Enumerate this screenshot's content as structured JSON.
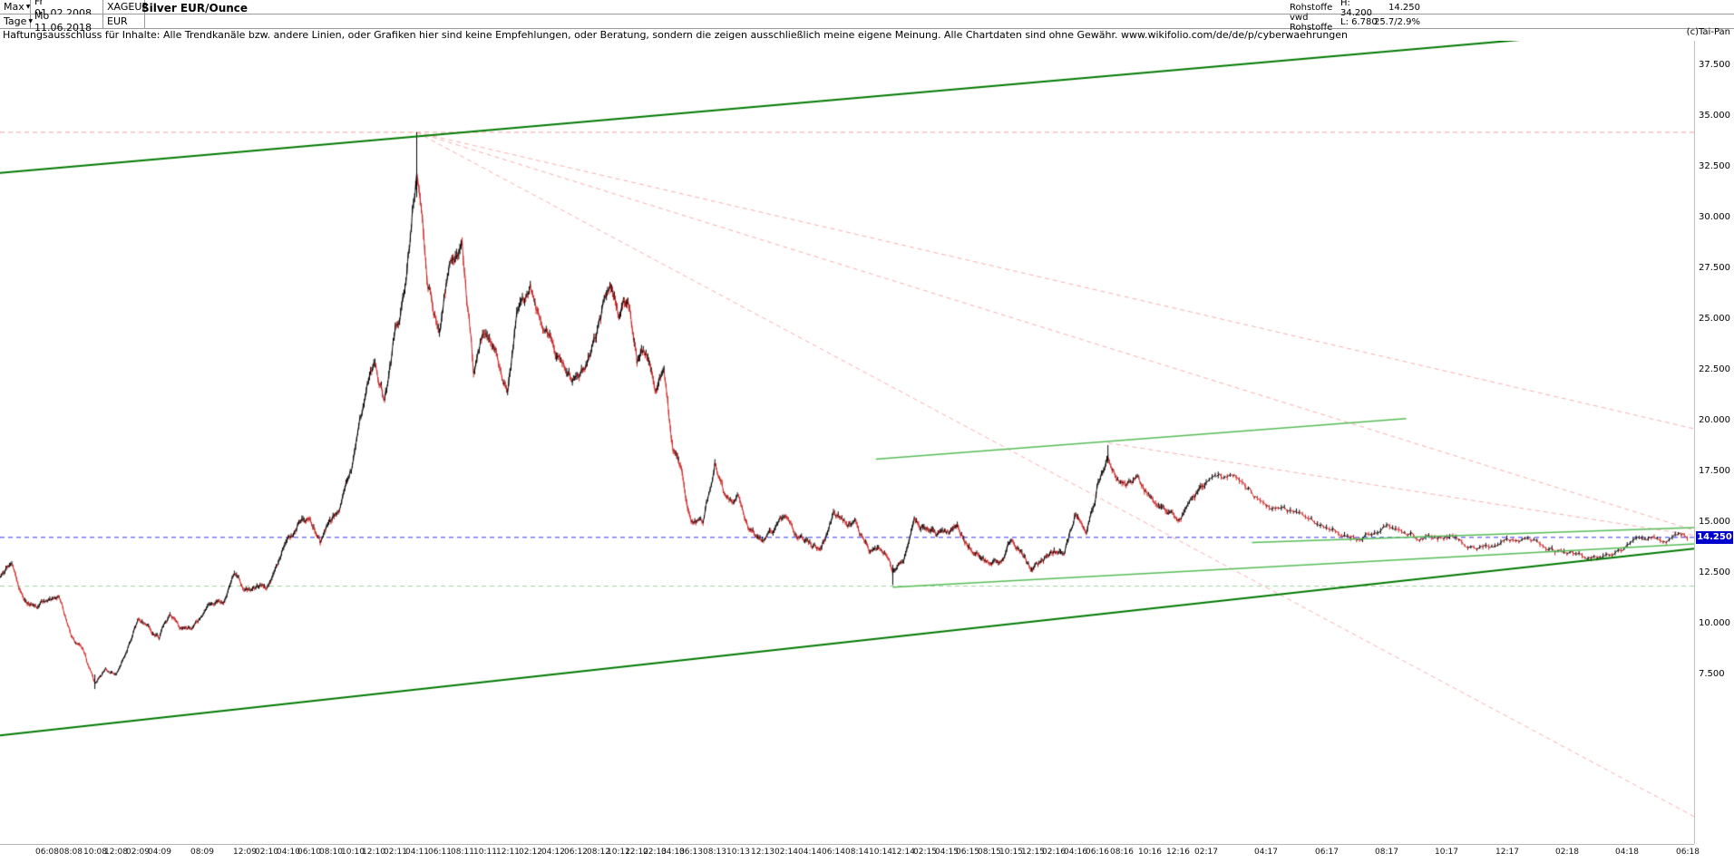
{
  "header": {
    "period": "Max",
    "interval": "Tage",
    "start_date": "Fr 01.02.2008",
    "end_date": "Mo 11.06.2018",
    "symbol": "XAGEUR",
    "currency": "EUR",
    "title": "Silver EUR/Ounce",
    "category": "Rohstoffe",
    "provider": "vwd Rohstoffe",
    "high_label": "H: 34.200",
    "low_label": "L: 6.780",
    "last_value": "14.250",
    "change_stats": "25.7/2.9%",
    "copyright": "(c)Tai-Pan"
  },
  "disclaimer": "Haftungsausschluss für Inhalte: Alle Trendkanäle bzw. andere Linien, oder Grafiken hier sind keine Empfehlungen, oder Beratung, sondern die zeigen ausschließlich meine eigene Meinung. Alle Chartdaten sind ohne Gewähr. www.wikifolio.com/de/de/p/cyberwaehrungen",
  "price_axis": {
    "labels": [
      "37.500",
      "35.000",
      "32.500",
      "30.000",
      "27.500",
      "25.000",
      "22.500",
      "20.000",
      "17.500",
      "15.000",
      "12.500",
      "10.000",
      "7.500"
    ],
    "current_marker": "14.250"
  },
  "date_axis": {
    "labels": [
      "06:08",
      "08:08",
      "10:08",
      "12:08",
      "02:09",
      "04:09",
      "08:09",
      "12:09",
      "02:10",
      "04:10",
      "06:10",
      "08:10",
      "10:10",
      "12:10",
      "02:11",
      "04:11",
      "06:11",
      "08:11",
      "10:11",
      "12:11",
      "02:12",
      "04:12",
      "06:12",
      "08:12",
      "10:12",
      "12:12",
      "02:13",
      "04:13",
      "06:13",
      "08:13",
      "10:13",
      "12:13",
      "02:14",
      "04:14",
      "06:14",
      "08:14",
      "10:14",
      "12:14",
      "02:15",
      "04:15",
      "06:15",
      "08:15",
      "10:15",
      "12:15",
      "02:16",
      "04:16",
      "06:16",
      "08:16",
      "10:16",
      "12:16",
      "02:17",
      "04:17",
      "06:17",
      "08:17",
      "10:17",
      "12:17",
      "02:18",
      "04:18",
      "06:18"
    ]
  },
  "chart_data": {
    "type": "line",
    "title": "Silver EUR/Ounce",
    "instrument": "XAGEUR",
    "x_start": "2008-02",
    "x_end": "2018-06",
    "x_step": "month",
    "grid": false,
    "legend": false,
    "extremes": {
      "high": {
        "date": "2011-04",
        "value": 34.2
      },
      "low": {
        "date": "2008-10",
        "value": 6.78
      }
    },
    "swing_points": [
      {
        "date": "2016-07",
        "value": 18.8
      },
      {
        "date": "2014-11",
        "value": 11.9
      }
    ],
    "last_price": 14.25,
    "series": [
      {
        "name": "XAGEUR close (EUR)",
        "values": [
          12.2,
          13.0,
          11.2,
          11.0,
          11.2,
          11.4,
          9.3,
          8.8,
          7.0,
          7.8,
          7.4,
          8.6,
          10.3,
          9.8,
          9.3,
          10.4,
          9.9,
          9.8,
          10.3,
          11.0,
          11.1,
          12.3,
          11.7,
          11.9,
          11.9,
          12.9,
          13.9,
          15.0,
          15.4,
          13.9,
          15.1,
          16.2,
          17.6,
          20.8,
          22.9,
          20.7,
          24.3,
          26.6,
          32.5,
          26.6,
          24.2,
          27.9,
          28.8,
          22.5,
          24.3,
          23.6,
          21.5,
          25.6,
          26.3,
          24.3,
          23.6,
          22.4,
          21.9,
          22.8,
          24.9,
          26.9,
          24.9,
          25.8,
          22.9,
          23.4,
          21.8,
          22.4,
          18.6,
          17.3,
          15.0,
          15.1,
          17.8,
          16.1,
          16.2,
          14.7,
          14.1,
          14.6,
          15.5,
          14.4,
          13.9,
          13.8,
          15.4,
          15.2,
          14.8,
          13.5,
          13.8,
          12.5,
          13.1,
          15.2,
          14.7,
          14.5,
          14.5,
          14.8,
          14.0,
          13.4,
          13.1,
          13.0,
          14.1,
          13.3,
          12.7,
          13.1,
          13.7,
          13.6,
          15.4,
          14.4,
          16.7,
          18.3,
          16.9,
          17.1,
          16.2,
          15.6,
          15.2,
          15.9,
          17.1,
          17.0,
          15.9,
          15.5,
          14.6,
          14.3,
          14.9,
          14.1,
          14.4,
          13.8,
          14.1,
          14.0,
          13.4,
          13.3,
          13.7,
          14.2,
          14.25
        ]
      }
    ],
    "reference_lines": [
      {
        "name": "all-time-high-line",
        "price": 34.2,
        "color": "#f0a0a0",
        "style": "dashed"
      },
      {
        "name": "support-low-line",
        "price": 11.85,
        "color": "#9cd69c",
        "style": "dashed"
      },
      {
        "name": "current-price-line",
        "price": 14.25,
        "color": "#3333ee",
        "style": "dashed"
      }
    ],
    "trend_lines": [
      {
        "name": "channel-top",
        "x1": 0.0,
        "price1": 32.2,
        "x2": 1.0,
        "price2": 39.5,
        "color": "#007a00",
        "width": 2,
        "style": "solid"
      },
      {
        "name": "channel-bottom",
        "x1": 0.0,
        "price1": 4.5,
        "x2": 1.0,
        "price2": 13.7,
        "color": "#007a00",
        "width": 2,
        "style": "solid"
      },
      {
        "name": "resistance-2016",
        "x1": 0.517,
        "price1": 18.1,
        "x2": 0.83,
        "price2": 20.1,
        "color": "#55bb55",
        "width": 1.5,
        "style": "solid"
      },
      {
        "name": "support-rising",
        "x1": 0.527,
        "price1": 11.8,
        "x2": 1.0,
        "price2": 13.93,
        "color": "#55bb55",
        "width": 1.5,
        "style": "solid"
      },
      {
        "name": "minor-resistance",
        "x1": 0.739,
        "price1": 14.0,
        "x2": 1.0,
        "price2": 14.73,
        "color": "#55bb55",
        "width": 1.5,
        "style": "solid"
      },
      {
        "name": "fan-line-1",
        "x1": 0.246,
        "price1": 34.2,
        "x2": 1.0,
        "price2": 19.6,
        "color": "#f6aeae",
        "width": 1,
        "style": "dashed"
      },
      {
        "name": "fan-line-2",
        "x1": 0.246,
        "price1": 34.2,
        "x2": 1.0,
        "price2": 14.6,
        "color": "#f6aeae",
        "width": 1,
        "style": "dashed"
      },
      {
        "name": "fan-line-3",
        "x1": 0.246,
        "price1": 34.2,
        "x2": 1.0,
        "price2": 0.5,
        "color": "#f6aeae",
        "width": 1,
        "style": "dashed"
      },
      {
        "name": "fan-line-4",
        "x1": 0.654,
        "price1": 18.9,
        "x2": 1.0,
        "price2": 14.35,
        "color": "#f6aeae",
        "width": 1,
        "style": "dashed"
      }
    ]
  }
}
